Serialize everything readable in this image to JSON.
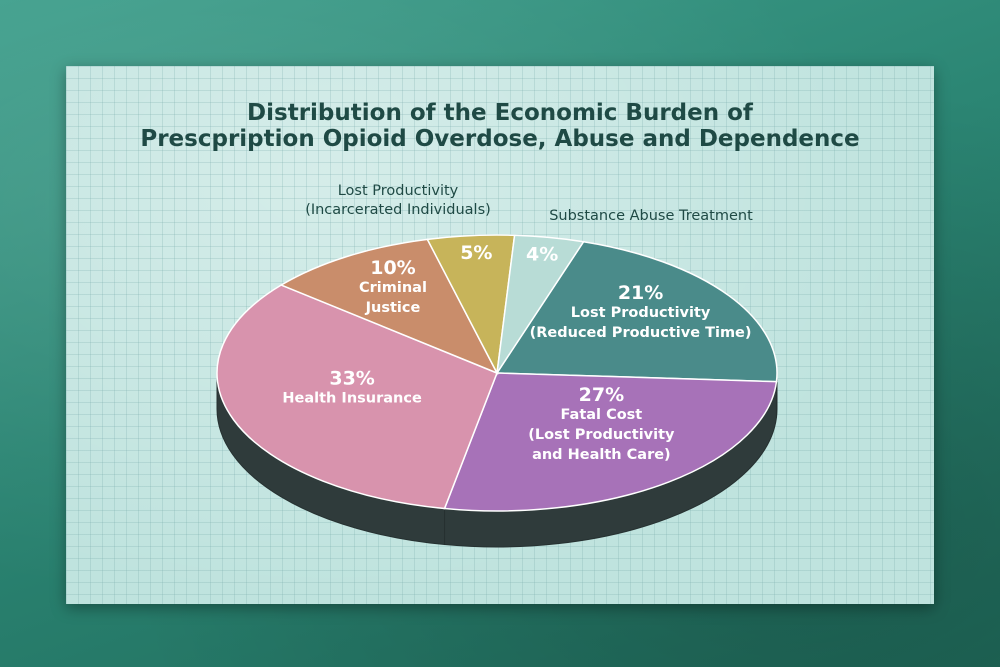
{
  "chart_data": {
    "type": "pie",
    "title": "Distribution of the Economic Burden of Prescpription Opioid Overdose, Abuse and Dependence",
    "title_lines": [
      "Distribution of the Economic Burden of",
      "Prescpription Opioid Overdose, Abuse and Dependence"
    ],
    "slices": [
      {
        "value": 21,
        "pct_label": "21%",
        "label_lines": [
          "Lost Productivity",
          "(Reduced Productive Time)"
        ],
        "color": "#4a8b8a",
        "side_color": "#2d5654"
      },
      {
        "value": 27,
        "pct_label": "27%",
        "label_lines": [
          "Fatal Cost",
          "(Lost Productivity",
          "and Health Care)"
        ],
        "color": "#a772b8",
        "side_color": "#5b3a68"
      },
      {
        "value": 33,
        "pct_label": "33%",
        "label_lines": [
          "Health Insurance"
        ],
        "color": "#d893ad",
        "side_color": "#2f3d3d"
      },
      {
        "value": 10,
        "pct_label": "10%",
        "label_lines": [
          "Criminal",
          "Justice"
        ],
        "color": "#c98d6b",
        "side_color": "#6b4a38"
      },
      {
        "value": 5,
        "pct_label": "5%",
        "label_lines": [],
        "outer_label_lines": [
          "Lost Productivity",
          "(Incarcerated Individuals)"
        ],
        "color": "#c7b45a",
        "side_color": "#6b6130"
      },
      {
        "value": 4,
        "pct_label": "4%",
        "label_lines": [],
        "outer_label_lines": [
          "Substance Abuse Treatment"
        ],
        "color": "#b8dcd6",
        "side_color": "#6d8a86"
      }
    ],
    "legend": "none",
    "grid": false
  }
}
